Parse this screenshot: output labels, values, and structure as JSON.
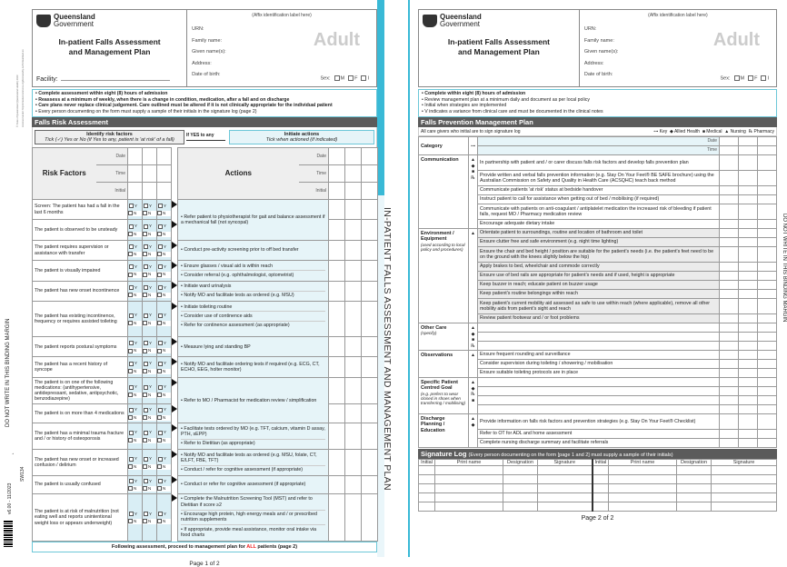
{
  "margins": {
    "binding_left": "DO NOT WRITE IN THIS BINDING MARGIN",
    "binding_right": "DO NOT WRITE IN THIS BINDING MARGIN",
    "version": "v6.00 - 11/2023",
    "form_code": "SW134",
    "copyright": "© State of Queensland (Queensland Health) 2023",
    "license": "Licensed under: http://creativecommons.org/licenses/by-nc/3.0/au/deed.en",
    "spine_title": "IN-PATIENT FALLS ASSESSMENT AND MANAGEMENT PLAN"
  },
  "header": {
    "org_line1": "Queensland",
    "org_line2": "Government",
    "title_line1": "In-patient Falls Assessment",
    "title_line2": "and Management Plan",
    "facility_label": "Facility:",
    "affix": "(Affix identification label here)",
    "urn": "URN:",
    "family_name": "Family name:",
    "given_names": "Given name(s):",
    "address": "Address:",
    "dob": "Date of birth:",
    "sex": "Sex:",
    "sex_options": [
      "M",
      "F",
      "I"
    ],
    "badge": "Adult"
  },
  "page1": {
    "instructions": [
      "Complete assessment within eight (8) hours of admission",
      "Reassess at a minimum of weekly, when there is a change in condition, medication, after a fall and on discharge",
      "Care plans never replace clinical judgement. Care outlined must be altered if it is not clinically appropriate for the individual patient",
      "Every person documenting on the form must supply a sample of their initials in the signature log (page 2)"
    ],
    "section_title": "Falls Risk Assessment",
    "identify_title": "Identify risk factors",
    "identify_sub": "Tick (✓) Yes or No (if Yes to any, patient is 'at risk' of a fall)",
    "if_yes": "If YES to any",
    "initiate_title": "Initiate actions",
    "initiate_sub": "Tick when actioned (if indicated)",
    "risk_header": "Risk Factors",
    "actions_header": "Actions",
    "date": "Date",
    "time": "Time",
    "initial": "Initial",
    "yes": "Y",
    "no": "N",
    "groups": [
      {
        "factors": [
          "Screen: The patient has had a fall in the last 6 months",
          "The patient is observed to be unsteady"
        ],
        "actions": [
          "Refer patient to physiotherapist for gait and balance assessment if a mechanical fall (not syncopal)"
        ]
      },
      {
        "factors": [
          "The patient requires supervision or assistance with transfer"
        ],
        "actions": [
          "Conduct pre-activity screening prior to off bed transfer"
        ]
      },
      {
        "factors": [
          "The patient is visually impaired"
        ],
        "actions": [
          "Ensure glasses / visual aid is within reach",
          "Consider referral (e.g. ophthalmologist, optometrist)"
        ]
      },
      {
        "factors": [
          "The patient has new onset incontinence"
        ],
        "actions": [
          "Initiate ward urinalysis",
          "Notify MO and facilitate tests as ordered (e.g. MSU)"
        ]
      },
      {
        "factors": [
          "The patient has existing incontinence, frequency or requires assisted toileting"
        ],
        "actions": [
          "Initiate toileting routine",
          "Consider use of continence aids",
          "Refer for continence assessment (as appropriate)"
        ]
      },
      {
        "factors": [
          "The patient reports postural symptoms"
        ],
        "actions": [
          "Measure lying and standing BP"
        ]
      },
      {
        "factors": [
          "The patient has a recent history of syncope"
        ],
        "actions": [
          "Notify MO and facilitate ordering tests if required (e.g. ECG, CT, ECHO, EEG, holter monitor)"
        ]
      },
      {
        "factors": [
          "The patient is on one of the following medications: (antihypertensive, antidepressant, sedative, antipsychotic, benzodiazepine)",
          "The patient is on more than 4 medications"
        ],
        "actions": [
          "Refer to MO / Pharmacist for medication review / simplification"
        ]
      },
      {
        "factors": [
          "The patient has a minimal trauma fracture and / or history of osteoporosis"
        ],
        "actions": [
          "Facilitate tests ordered by MO (e.g. TFT, calcium, vitamin D assay, PTH, sEPP)",
          "Refer to Dietitian (as appropriate)"
        ]
      },
      {
        "factors": [
          "The patient has new onset or increased confusion / delirium"
        ],
        "actions": [
          "Notify MO and facilitate tests as ordered (e.g. MSU, folate, CT, E/LFT, FBE, TFT)",
          "Conduct / refer for cognitive assessment (if appropriate)"
        ]
      },
      {
        "factors": [
          "The patient is usually confused"
        ],
        "actions": [
          "Conduct or refer for cognitive assessment (if appropriate)"
        ]
      },
      {
        "factors": [
          "The patient is at risk of malnutrition (not eating well and reports unintentional weight loss or appears underweight)"
        ],
        "actions": [
          "Complete the Malnutrition Screening Tool (MST) and refer to Dietitian if score ≥2",
          "Encourage high protein, high energy meals and / or prescribed nutrition supplements",
          "If appropriate, provide meal assistance, monitor oral intake via food charts"
        ]
      }
    ],
    "footer_pre": "Following assessment, proceed to management plan for ",
    "footer_all": "ALL",
    "footer_post": " patients (page 2)",
    "page_number": "Page 1 of 2"
  },
  "page2": {
    "instructions": [
      "Complete within eight (8) hours of admission",
      "Review management plan at a minimum daily and document as per local policy",
      "Initial when strategies are implemented",
      "V indicates a variance from clinical care and must be documented in the clinical notes"
    ],
    "section_title": "Falls Prevention Management Plan",
    "caregivers_note": "All care givers who initial are to sign signature log",
    "key": {
      "key": "⊶ Key",
      "allied": "◆ Allied Health",
      "medical": "■ Medical",
      "nursing": "▲ Nursing",
      "pharmacy": "℞ Pharmacy"
    },
    "category_header": "Category",
    "key_symbol": "⊶",
    "date": "Date",
    "time": "Time",
    "categories": [
      {
        "name": "Communication",
        "note": "",
        "symbols": "▲ ◆ ■ ℞",
        "items": [
          "In partnership with patient and / or carer discuss falls risk factors and develop falls prevention plan",
          "Provide written and verbal falls prevention information (e.g. Stay On Your Feet® BE SAFE brochure) using the Australian Commission on Safety and Quality in Health Care (ACSQHC) teach back method",
          "Communicate patients 'at risk' status at bedside handover",
          "Instruct patient to call for assistance when getting out of bed / mobilising (if required)",
          "Communicate with patients on anti-coagulant / antiplatelet medication the increased risk of bleeding if patient falls, request MO / Pharmacy medication review",
          "Encourage adequate dietary intake"
        ]
      },
      {
        "name": "Environment / Equipment",
        "note": "(used according to local policy and procedures)",
        "symbols": "▲",
        "items": [
          "Orientate patient to surroundings, routine and location of bathroom and toilet",
          "Ensure clutter free and safe environment (e.g. night time lighting)",
          "Ensure the chair and bed height / position are suitable for the patient's needs (i.e. the patient's feet need to be on the ground with the knees slightly below the hip)",
          "Apply brakes to bed, wheelchair and commode correctly",
          "Ensure use of bed rails are appropriate for patient's needs and if used, height is appropriate",
          "Keep buzzer in reach; educate patient on buzzer usage",
          "Keep patient's routine belongings within reach",
          "Keep patient's current mobility aid assessed as safe to use within reach (where applicable), remove all other mobility aids from patient's sight and reach",
          "Review patient footwear and / or foot problems"
        ]
      },
      {
        "name": "Other Care",
        "note": "(specify)",
        "symbols": "▲ ◆ ■ ℞",
        "items": [
          "",
          "",
          ""
        ]
      },
      {
        "name": "Observations",
        "note": "",
        "symbols": "▲",
        "items": [
          "Ensure frequent rounding and surveillance",
          "Consider supervision during toileting / showering / mobilisation",
          "Ensure suitable toileting protocols are in place"
        ]
      },
      {
        "name": "Specific Patient Centred Goal",
        "note": "(e.g. prefers to wear closed in shoes when transferring / mobilising)",
        "symbols": "▲ ◆ ℞ ■",
        "items": [
          "",
          "",
          "",
          ""
        ]
      },
      {
        "name": "Discharge Planning / Education",
        "note": "",
        "symbols": "▲ ◆",
        "items": [
          "Provide information on falls risk factors and prevention strategies (e.g. Stay On Your Feet® Checklist)",
          "Refer to OT for ADL and home assessment",
          "Complete nursing discharge summary and facilitate referrals"
        ]
      }
    ],
    "signature_title": "Signature Log",
    "signature_note": "(Every person documenting on the form [page 1 and 2] must supply a sample of their initials)",
    "signature_columns": [
      "Initial",
      "Print name",
      "Designation",
      "Signature",
      "Initial",
      "Print name",
      "Designation",
      "Signature"
    ],
    "page_number": "Page 2 of 2"
  },
  "colors": {
    "accent": "#39b9d6",
    "section_bar": "#5b5b5b",
    "light_blue": "#e6f4f8",
    "alert_red": "#e22222"
  }
}
